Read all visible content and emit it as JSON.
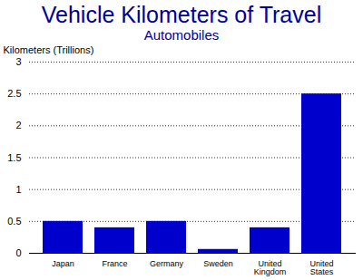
{
  "chart_data": {
    "type": "bar",
    "title": "Vehicle Kilometers of Travel",
    "subtitle": "Automobiles",
    "y_label": "Kilometers (Trillions)",
    "categories": [
      "Japan",
      "France",
      "Germany",
      "Sweden",
      "United Kingdom",
      "United States"
    ],
    "values": [
      0.5,
      0.4,
      0.5,
      0.06,
      0.4,
      2.5
    ],
    "color": "#0000cc",
    "ylim": [
      0,
      3
    ],
    "yticks": [
      0,
      0.5,
      1,
      1.5,
      2,
      2.5,
      3
    ],
    "grid": true
  }
}
